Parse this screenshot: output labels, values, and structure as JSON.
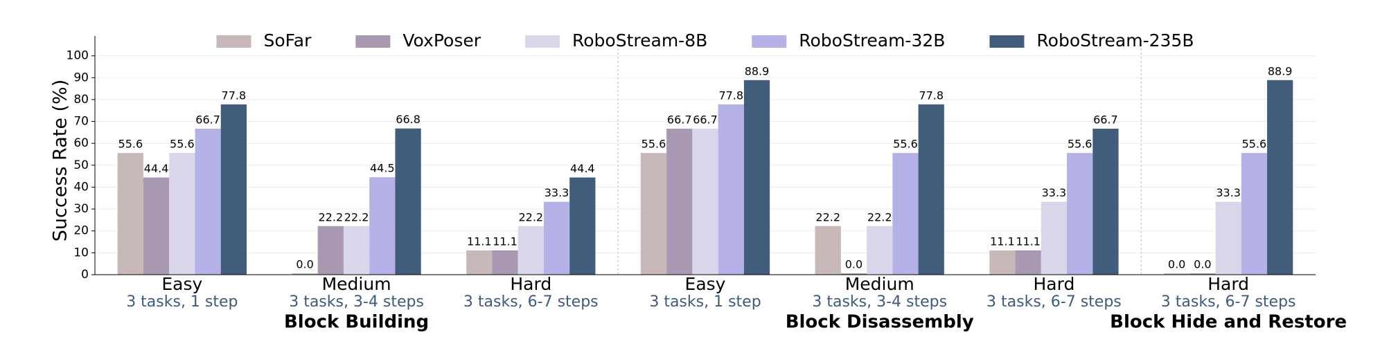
{
  "chart_data": {
    "type": "bar",
    "y_label": "Success Rate (%)",
    "ylim": [
      0,
      104
    ],
    "yticks": [
      0,
      10,
      20,
      30,
      40,
      50,
      60,
      70,
      80,
      90,
      100
    ],
    "grid": true,
    "legend": "top",
    "groups": [
      {
        "name": "Block Building",
        "categories": [
          "Easy",
          "Medium",
          "Hard"
        ],
        "subtitles": [
          "3 tasks, 1 step",
          "3 tasks, 3-4 steps",
          "3 tasks, 6-7 steps"
        ]
      },
      {
        "name": "Block Disassembly",
        "categories": [
          "Easy",
          "Medium",
          "Hard"
        ],
        "subtitles": [
          "3 tasks, 1 step",
          "3 tasks, 3-4 steps",
          "3 tasks, 6-7 steps"
        ]
      },
      {
        "name": "Block Hide and Restore",
        "categories": [
          "Hard"
        ],
        "subtitles": [
          "3 tasks, 6-7 steps"
        ]
      }
    ],
    "series": [
      {
        "name": "SoFar",
        "color": "#c9b8b8",
        "values": [
          55.6,
          0,
          11.1,
          55.6,
          22.2,
          11.1,
          0
        ],
        "value_labels": [
          "55.6",
          "0.0",
          "11.1",
          "55.6",
          "22.2",
          "11.1",
          "0.0"
        ]
      },
      {
        "name": "VoxPoser",
        "color": "#a898b2",
        "values": [
          44.4,
          22.2,
          11.1,
          66.7,
          0,
          11.1,
          0
        ],
        "value_labels": [
          "44.4",
          "22.2",
          "11.1",
          "66.7",
          "0.0",
          "11.1",
          "0.0"
        ]
      },
      {
        "name": "RoboStream-8B",
        "color": "#d9d6ec",
        "values": [
          55.6,
          22.2,
          22.2,
          66.7,
          22.2,
          33.3,
          33.3
        ],
        "value_labels": [
          "55.6",
          "22.2",
          "22.2",
          "66.7",
          "22.2",
          "33.3",
          "33.3"
        ]
      },
      {
        "name": "RoboStream-32B",
        "color": "#b3b1e6",
        "values": [
          66.7,
          44.5,
          33.3,
          77.8,
          55.6,
          55.6,
          55.6
        ],
        "value_labels": [
          "66.7",
          "44.5",
          "33.3",
          "77.8",
          "55.6",
          "55.6",
          "55.6"
        ]
      },
      {
        "name": "RoboStream-235B",
        "color": "#425d7c",
        "values": [
          77.8,
          66.8,
          44.4,
          88.9,
          77.8,
          66.7,
          88.9
        ],
        "value_labels": [
          "77.8",
          "66.8",
          "44.4",
          "88.9",
          "77.8",
          "66.7",
          "88.9"
        ]
      }
    ]
  }
}
